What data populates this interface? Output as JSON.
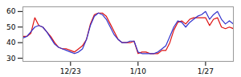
{
  "chart_data": {
    "type": "line",
    "x": [
      0,
      1,
      2,
      3,
      4,
      5,
      6,
      7,
      8,
      9,
      10,
      11,
      12,
      13,
      14,
      15,
      16,
      17,
      18,
      19,
      20,
      21,
      22,
      23,
      24,
      25,
      26,
      27,
      28,
      29,
      30,
      31,
      32,
      33,
      34,
      35,
      36,
      37,
      38,
      39,
      40,
      41,
      42,
      43,
      44,
      45,
      46,
      47,
      48,
      49,
      50,
      51,
      52,
      53
    ],
    "series": [
      {
        "color": "#dd1111",
        "values": [
          44,
          44,
          46,
          56,
          51,
          50,
          47,
          44,
          40,
          37,
          36,
          36,
          35,
          34,
          36,
          38,
          42,
          52,
          58,
          59,
          59,
          57,
          52,
          47,
          42,
          40,
          40,
          40,
          41,
          33,
          34,
          34,
          33,
          33,
          33,
          35,
          35,
          40,
          48,
          53,
          54,
          52,
          55,
          56,
          56,
          56,
          56,
          51,
          55,
          56,
          50,
          49,
          50,
          49
        ]
      },
      {
        "color": "#3333cc",
        "values": [
          43,
          44,
          47,
          50,
          51,
          50,
          47,
          43,
          39,
          37,
          36,
          35,
          34,
          33,
          34,
          36,
          42,
          51,
          57,
          59,
          58,
          55,
          50,
          45,
          42,
          40,
          40,
          41,
          41,
          34,
          33,
          33,
          33,
          33,
          34,
          36,
          38,
          44,
          50,
          54,
          53,
          50,
          53,
          55,
          57,
          58,
          60,
          55,
          58,
          60,
          55,
          52,
          54,
          52
        ]
      }
    ],
    "xlim": [
      0,
      53
    ],
    "xticks": [
      {
        "value": 12,
        "label": "12/23"
      },
      {
        "value": 29,
        "label": "1/10"
      },
      {
        "value": 46,
        "label": "1/27"
      }
    ],
    "ylim": [
      28,
      63
    ],
    "yticks": [
      30,
      40,
      50,
      60
    ]
  }
}
